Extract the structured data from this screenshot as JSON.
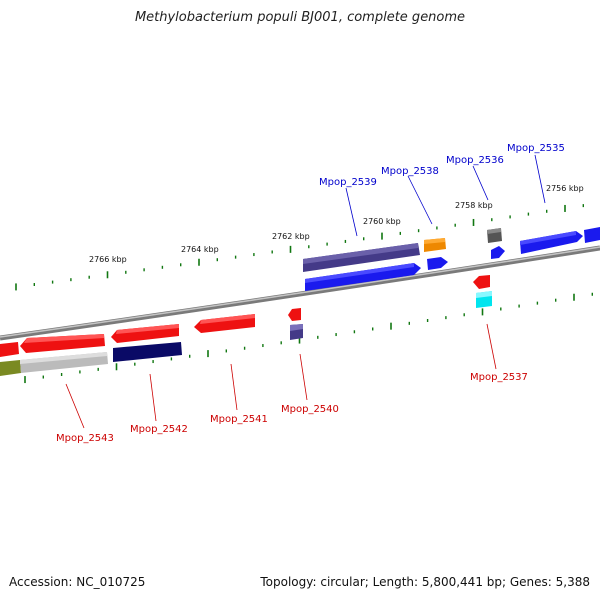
{
  "title": "Methylobacterium populi BJ001, complete genome",
  "footer": {
    "accession": "Accession: NC_010725",
    "summary": "Topology: circular; Length: 5,800,441 bp; Genes: 5,388"
  },
  "colors": {
    "forward_label": "#0000cc",
    "reverse_label": "#cc0000",
    "tick": "#117711",
    "backbone": "#8a8a8a"
  },
  "kbp_labels": [
    "2766 kbp",
    "2764 kbp",
    "2762 kbp",
    "2760 kbp",
    "2758 kbp",
    "2756 kbp"
  ],
  "forward_genes": [
    "Mpop_2539",
    "Mpop_2538",
    "Mpop_2536",
    "Mpop_2535"
  ],
  "reverse_genes": [
    "Mpop_2543",
    "Mpop_2542",
    "Mpop_2541",
    "Mpop_2540",
    "Mpop_2537"
  ]
}
